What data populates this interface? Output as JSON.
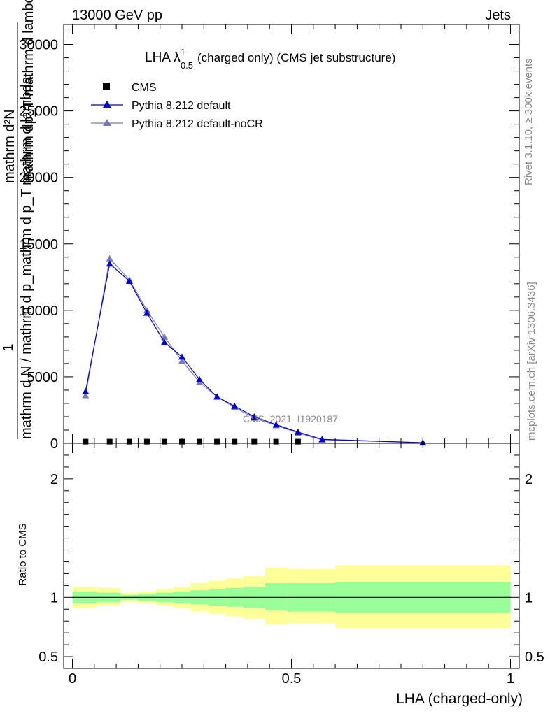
{
  "header": {
    "left": "13000 GeV pp",
    "right": "Jets"
  },
  "side_labels": {
    "rivet": "Rivet 3.1.10, ≥ 300k events",
    "mcplots": "mcplots.cern.ch [arXiv:1306.3436]"
  },
  "chart_data": {
    "type": "scatter",
    "title_main": "LHA λ",
    "title_sup": "1",
    "title_sub": "0.5",
    "title_rest": "(charged only) (CMS jet substructure)",
    "analysis_id": "CMS_2021_I1920187",
    "ylabel_numerator": "1",
    "ylabel_denominator": "mathrm d N / mathrm d p_mathrm d p_T mathrm d lambda",
    "ylabel_overlap_a": "mathrm d²N",
    "ylabel_overlap_b": "mathrm dp_T mathrm d lambda",
    "xlabel": "LHA (charged-only)",
    "ratio_ylabel": "Ratio to CMS",
    "main_ylim": [
      0,
      31500
    ],
    "main_yticks": [
      0,
      5000,
      10000,
      15000,
      20000,
      25000,
      30000
    ],
    "main_ytick_labels": [
      "0",
      "5000",
      "10000",
      "15000",
      "20000",
      "25000",
      "30000"
    ],
    "xlim": [
      -0.02,
      1.02
    ],
    "xticks": [
      0,
      0.5,
      1
    ],
    "xtick_labels": [
      "0",
      "0.5",
      "1"
    ],
    "ratio_ylim": [
      0.4,
      2.3
    ],
    "ratio_yticks": [
      0.5,
      1,
      2
    ],
    "ratio_ytick_labels": [
      "0.5",
      "1",
      "2"
    ],
    "legend": [
      {
        "name": "CMS",
        "color": "#000000",
        "marker": "square"
      },
      {
        "name": "Pythia 8.212 default",
        "color": "#0000cc",
        "marker": "triangle"
      },
      {
        "name": "Pythia 8.212 default-noCR",
        "color": "#7a7ab8",
        "marker": "triangle"
      }
    ],
    "cms": {
      "x": [
        0.03,
        0.085,
        0.13,
        0.17,
        0.21,
        0.25,
        0.29,
        0.33,
        0.37,
        0.415,
        0.465,
        0.515
      ],
      "y": [
        20,
        20,
        20,
        20,
        20,
        20,
        20,
        20,
        20,
        20,
        20,
        20
      ]
    },
    "series": [
      {
        "name": "Pythia 8.212 default",
        "color": "#0000cc",
        "x": [
          0.03,
          0.085,
          0.13,
          0.17,
          0.21,
          0.25,
          0.29,
          0.33,
          0.37,
          0.415,
          0.465,
          0.515,
          0.57,
          0.8
        ],
        "y": [
          3900,
          13500,
          12200,
          9800,
          7600,
          6500,
          4800,
          3500,
          2800,
          2000,
          1400,
          850,
          300,
          50
        ]
      },
      {
        "name": "Pythia 8.212 default-noCR",
        "color": "#7a7ab8",
        "x": [
          0.03,
          0.085,
          0.13,
          0.17,
          0.21,
          0.25,
          0.29,
          0.33,
          0.37,
          0.415,
          0.465,
          0.515,
          0.57,
          0.8
        ],
        "y": [
          3600,
          13900,
          12300,
          10000,
          8000,
          6200,
          4600,
          3500,
          2700,
          1900,
          1350,
          780,
          270,
          40
        ]
      }
    ],
    "ratio_bands": {
      "edges": [
        0.0,
        0.055,
        0.11,
        0.15,
        0.19,
        0.23,
        0.27,
        0.31,
        0.35,
        0.39,
        0.44,
        0.49,
        0.6,
        1.0
      ],
      "yellow_lo": [
        0.91,
        0.93,
        0.96,
        0.95,
        0.93,
        0.91,
        0.88,
        0.86,
        0.84,
        0.82,
        0.77,
        0.78,
        0.74
      ],
      "yellow_hi": [
        1.09,
        1.08,
        1.04,
        1.05,
        1.07,
        1.09,
        1.12,
        1.14,
        1.16,
        1.18,
        1.25,
        1.24,
        1.27
      ],
      "green_lo": [
        0.95,
        0.96,
        0.98,
        0.97,
        0.96,
        0.95,
        0.94,
        0.93,
        0.92,
        0.91,
        0.89,
        0.88,
        0.87
      ],
      "green_hi": [
        1.05,
        1.04,
        1.02,
        1.03,
        1.04,
        1.05,
        1.06,
        1.07,
        1.08,
        1.09,
        1.12,
        1.12,
        1.13
      ],
      "yellow_color": "#ffff99",
      "green_color": "#99ff99"
    }
  }
}
